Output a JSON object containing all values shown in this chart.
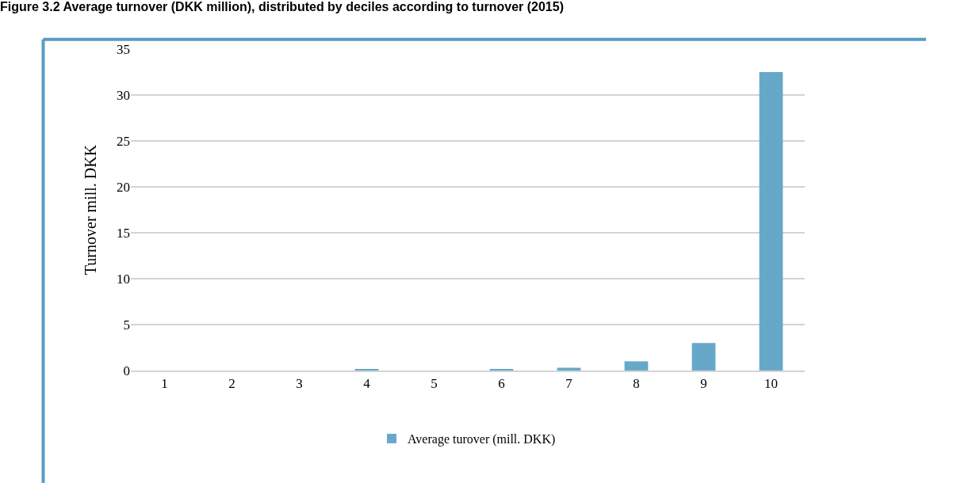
{
  "chart_data": {
    "type": "bar",
    "title": "Figure 3.2 Average turnover (DKK million), distributed by deciles according to turnover (2015)",
    "ylabel": "Turnover mill. DKK",
    "categories": [
      "1",
      "2",
      "3",
      "4",
      "5",
      "6",
      "7",
      "8",
      "9",
      "10"
    ],
    "series": [
      {
        "name": "Average turover (mill. DKK)",
        "color": "#67a8c9",
        "values": [
          0,
          0,
          0,
          0.1,
          0,
          0.1,
          0.3,
          1.0,
          3.0,
          32.5
        ]
      }
    ],
    "ylim": [
      0,
      35
    ],
    "yticks": [
      0,
      5,
      10,
      15,
      20,
      25,
      30,
      35
    ],
    "grid": "y",
    "legend": "bottom"
  }
}
